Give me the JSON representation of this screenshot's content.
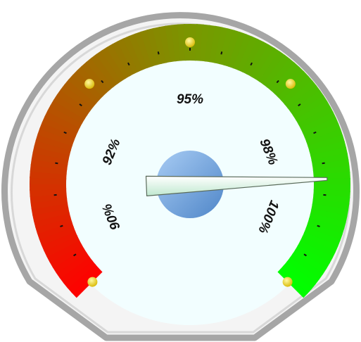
{
  "chart_data": {
    "type": "gauge",
    "min": 89,
    "max": 101,
    "value": 98.9,
    "ticks": [
      {
        "value": 90,
        "label": "90%"
      },
      {
        "value": 92,
        "label": "92%"
      },
      {
        "value": 95,
        "label": "95%"
      },
      {
        "value": 98,
        "label": "98%"
      },
      {
        "value": 100,
        "label": "100%"
      }
    ],
    "bands": [
      {
        "from": 89,
        "to": 92,
        "color": "#ff0000"
      },
      {
        "from": 92,
        "to": 95,
        "color": "#9a5a00"
      },
      {
        "from": 95,
        "to": 98,
        "color": "#6ea000"
      },
      {
        "from": 98,
        "to": 101,
        "color": "#00ff00"
      }
    ],
    "colors": {
      "low": "#ff0000",
      "mid": "#7a9600",
      "high": "#00ff00",
      "needle": "#e8fff0",
      "hub": "#6fa8e8",
      "face": "#f2feff",
      "bezel": "#a8a8a8",
      "marker": "#ffe000"
    }
  }
}
